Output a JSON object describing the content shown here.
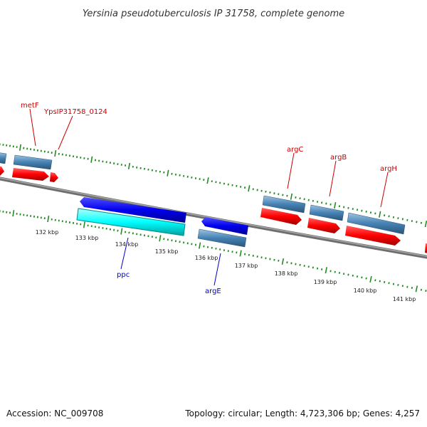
{
  "title": "Yersinia pseudotuberculosis IP 31758, complete genome",
  "footer": {
    "accession": "Accession: NC_009708",
    "summary": "Topology: circular; Length: 4,723,306 bp; Genes: 4,257"
  },
  "colors": {
    "forward_gene": "#ff0000",
    "forward_cds": "#4682b4",
    "reverse_gene": "#0000ee",
    "reverse_highlight": "#00ffff",
    "reverse_cds": "#4682b4",
    "ticks": "#228b22",
    "backbone": "#808080",
    "forward_label": "#cc0000",
    "reverse_label": "#0000cc"
  },
  "scale_labels": [
    "132 kbp",
    "133 kbp",
    "134 kbp",
    "135 kbp",
    "136 kbp",
    "137 kbp",
    "138 kbp",
    "139 kbp",
    "140 kbp",
    "141 kbp"
  ],
  "forward_labels": [
    "metF",
    "YpsIP31758_0124",
    "argC",
    "argB",
    "argH"
  ],
  "reverse_labels": [
    "ppc",
    "argE"
  ]
}
